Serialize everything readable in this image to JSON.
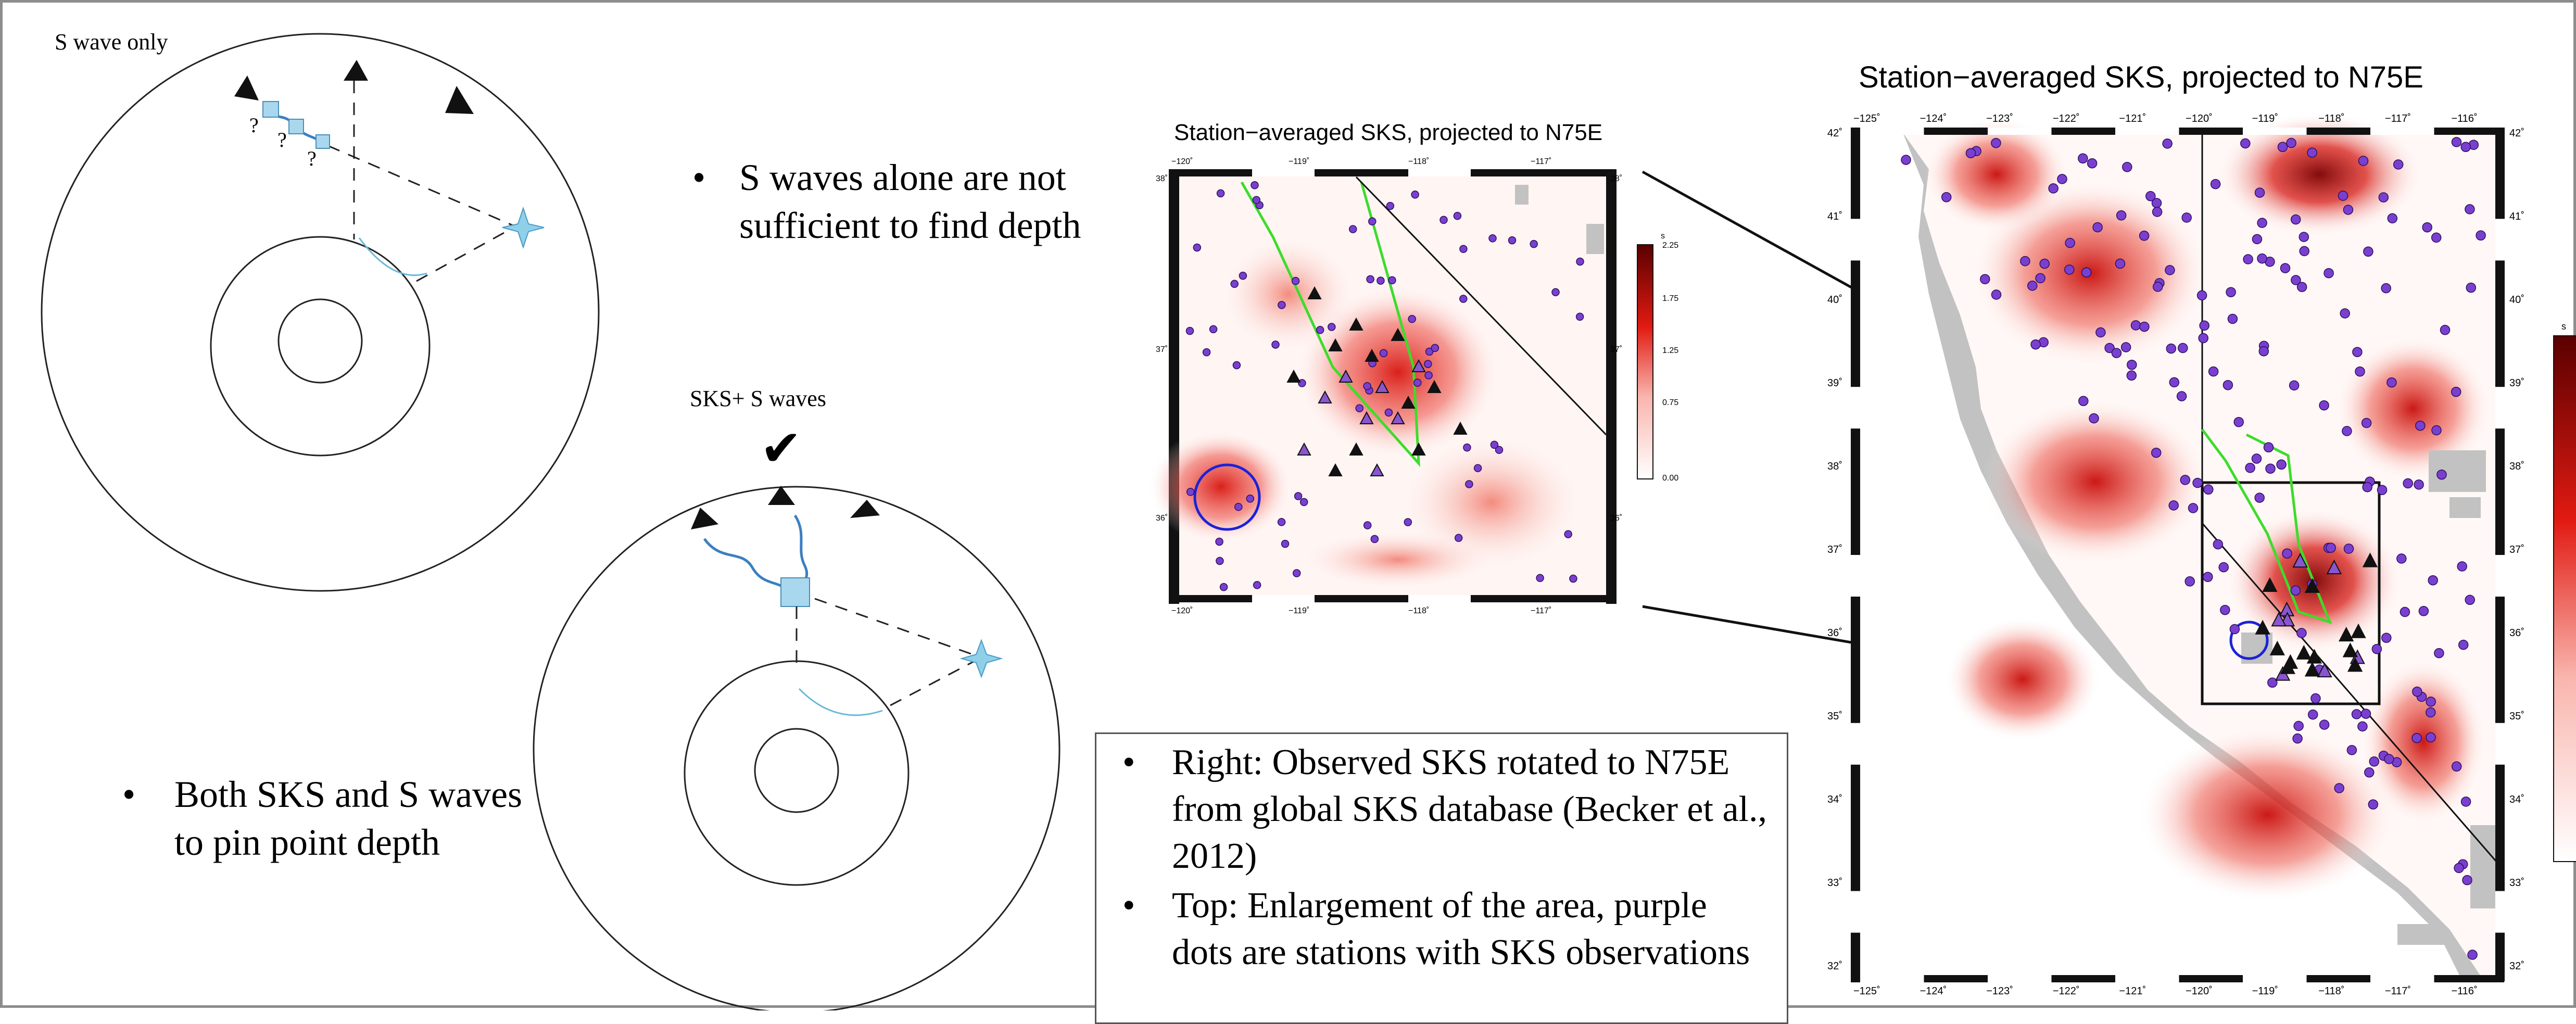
{
  "left_panel": {
    "label_top": "S wave only",
    "question_marks": [
      "?",
      "?",
      "?"
    ],
    "bullet": "S waves alone are not sufficient to find depth"
  },
  "mid_panel": {
    "label": "SKS+ S waves",
    "checkmark": "✔",
    "bullet": "Both SKS and S waves to pin point depth"
  },
  "inset_map": {
    "title": "Station−averaged SKS, projected to N75E",
    "lon_ticks": [
      "−120˚",
      "−119˚",
      "−118˚",
      "−117˚"
    ],
    "lat_ticks": [
      "38˚",
      "37˚",
      "36˚"
    ],
    "colorbar_unit": "s",
    "colorbar_ticks": [
      "2.25",
      "1.75",
      "1.25",
      "0.75",
      "0.00"
    ]
  },
  "main_map": {
    "title": "Station−averaged SKS, projected to N75E",
    "lon_ticks": [
      "−125˚",
      "−124˚",
      "−123˚",
      "−122˚",
      "−121˚",
      "−120˚",
      "−119˚",
      "−118˚",
      "−117˚",
      "−116˚"
    ],
    "lat_ticks": [
      "42˚",
      "41˚",
      "40˚",
      "39˚",
      "38˚",
      "37˚",
      "36˚",
      "35˚",
      "34˚",
      "33˚",
      "32˚"
    ],
    "colorbar_unit": "s"
  },
  "caption_box": {
    "items": [
      "Right: Observed SKS rotated to N75E from global SKS database (Becker et al., 2012)",
      "Top: Enlargement of the area, purple dots are stations with SKS observations"
    ]
  },
  "colors": {
    "slowness_high": "#7a0000",
    "slowness_mid": "#e01010",
    "slowness_low": "#ffffff",
    "station": "#7b3fd0",
    "fault_outline": "#3ddc2a",
    "circle_marker": "#1c22d8",
    "wave_path": "#3b7fc0",
    "square_marker": "#a9d8ee",
    "star_marker": "#8fd0e8",
    "no_data": "#c2c2c2"
  }
}
